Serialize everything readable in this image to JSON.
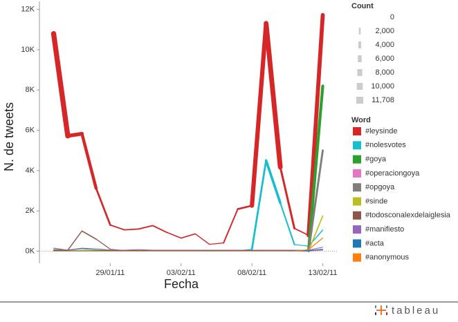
{
  "chart_data": {
    "type": "line",
    "x_label": "Fecha",
    "y_label": "N. de tweets",
    "x": [
      "2011-01-25",
      "2011-01-26",
      "2011-01-27",
      "2011-01-28",
      "2011-01-29",
      "2011-01-30",
      "2011-01-31",
      "2011-02-01",
      "2011-02-02",
      "2011-02-03",
      "2011-02-04",
      "2011-02-05",
      "2011-02-06",
      "2011-02-07",
      "2011-02-08",
      "2011-02-09",
      "2011-02-10",
      "2011-02-11",
      "2011-02-12",
      "2011-02-13"
    ],
    "xlim": [
      "2011-01-24",
      "2011-02-14"
    ],
    "xticks": [
      {
        "value": "2011-01-29",
        "label": "29/01/11"
      },
      {
        "value": "2011-02-03",
        "label": "03/02/11"
      },
      {
        "value": "2011-02-08",
        "label": "08/02/11"
      },
      {
        "value": "2011-02-13",
        "label": "13/02/11"
      }
    ],
    "ylim": [
      -600,
      12400
    ],
    "yticks": [
      {
        "value": 0,
        "label": "0K"
      },
      {
        "value": 2000,
        "label": "2K"
      },
      {
        "value": 4000,
        "label": "4K"
      },
      {
        "value": 6000,
        "label": "6K"
      },
      {
        "value": 8000,
        "label": "8K"
      },
      {
        "value": 10000,
        "label": "10K"
      },
      {
        "value": 12000,
        "label": "12K"
      }
    ],
    "color_legend_title": "Word",
    "size_legend": {
      "title": "Count",
      "values": [
        0,
        {
          "value": 2000,
          "label": "2,000"
        },
        {
          "value": 4000,
          "label": "4,000"
        },
        {
          "value": 6000,
          "label": "6,000"
        },
        {
          "value": 8000,
          "label": "8,000"
        },
        {
          "value": 10000,
          "label": "10,000"
        },
        {
          "value": 11708,
          "label": "11,708"
        }
      ]
    },
    "series": [
      {
        "name": "#leysinde",
        "color": "#d62728",
        "values": [
          10800,
          5720,
          5830,
          3120,
          1300,
          1060,
          1100,
          1270,
          930,
          650,
          860,
          340,
          410,
          2090,
          2260,
          11310,
          4180,
          1130,
          790,
          11720
        ]
      },
      {
        "name": "#nolesvotes",
        "color": "#17becf",
        "values": [
          20,
          20,
          20,
          20,
          20,
          20,
          20,
          20,
          20,
          20,
          20,
          20,
          20,
          20,
          100,
          4500,
          2400,
          330,
          250,
          1050
        ]
      },
      {
        "name": "#goya",
        "color": "#2ca02c",
        "values": [
          50,
          50,
          120,
          60,
          40,
          30,
          30,
          30,
          30,
          30,
          30,
          30,
          30,
          30,
          30,
          30,
          30,
          30,
          30,
          8200
        ]
      },
      {
        "name": "#operaciongoya",
        "color": "#e377c2",
        "values": [
          0,
          0,
          0,
          0,
          0,
          0,
          0,
          0,
          0,
          0,
          0,
          0,
          0,
          0,
          0,
          0,
          0,
          0,
          0,
          50
        ]
      },
      {
        "name": "#opgoya",
        "color": "#7f7f7f",
        "values": [
          0,
          0,
          0,
          0,
          0,
          0,
          0,
          0,
          0,
          0,
          0,
          0,
          0,
          0,
          0,
          0,
          0,
          0,
          0,
          5000
        ]
      },
      {
        "name": "#sinde",
        "color": "#bcbd22",
        "values": [
          0,
          0,
          0,
          0,
          0,
          0,
          0,
          0,
          0,
          0,
          0,
          0,
          0,
          0,
          0,
          0,
          0,
          0,
          20,
          1750
        ]
      },
      {
        "name": "#todosconalexdelaiglesia",
        "color": "#8c564b",
        "values": [
          150,
          50,
          1000,
          600,
          100,
          30,
          30,
          30,
          30,
          30,
          30,
          30,
          30,
          30,
          30,
          30,
          30,
          30,
          30,
          80
        ]
      },
      {
        "name": "#manifiesto",
        "color": "#9467bd",
        "values": [
          80,
          60,
          150,
          120,
          60,
          50,
          80,
          50,
          50,
          50,
          50,
          50,
          50,
          50,
          50,
          50,
          50,
          50,
          50,
          200
        ]
      },
      {
        "name": "#acta",
        "color": "#1f77b4",
        "values": [
          20,
          20,
          20,
          20,
          20,
          20,
          20,
          20,
          20,
          20,
          20,
          20,
          20,
          20,
          20,
          20,
          20,
          20,
          20,
          100
        ]
      },
      {
        "name": "#anonymous",
        "color": "#ff7f0e",
        "values": [
          0,
          0,
          0,
          0,
          0,
          0,
          0,
          0,
          0,
          0,
          0,
          0,
          0,
          0,
          0,
          0,
          0,
          0,
          80,
          650
        ]
      }
    ]
  },
  "logo": "tableau"
}
